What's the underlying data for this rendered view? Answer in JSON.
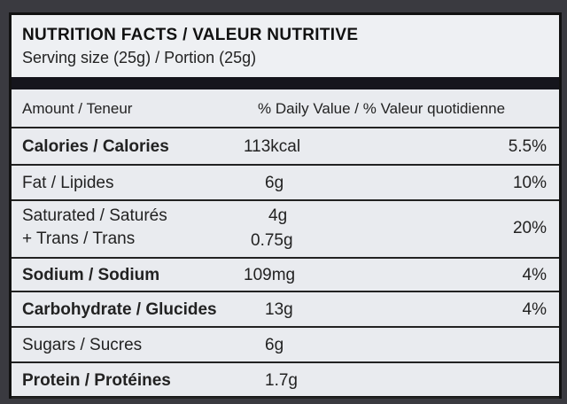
{
  "header": {
    "title": "NUTRITION FACTS / VALEUR NUTRITIVE",
    "serving": "Serving size (25g) / Portion (25g)"
  },
  "table": {
    "columns": [
      "Amount / Teneur",
      "% Daily Value / % Valeur quotidienne"
    ],
    "rows": [
      {
        "name": "Calories / Calories",
        "amount": "113kcal",
        "dv": "5.5%"
      },
      {
        "name": "Fat / Lipides",
        "amount": "6g",
        "dv": "10%"
      },
      {
        "name": "Saturated / Saturés",
        "amount": "4g",
        "sub_name": "+ Trans / Trans",
        "sub_amount": "0.75g",
        "dv": "20%"
      },
      {
        "name": "Sodium / Sodium",
        "amount": "109mg",
        "dv": "4%"
      },
      {
        "name": "Carbohydrate / Glucides",
        "amount": "13g",
        "dv": "4%"
      },
      {
        "name": "Sugars / Sucres",
        "amount": "6g"
      },
      {
        "name": "Protein / Protéines",
        "amount": "1.7g"
      }
    ]
  }
}
